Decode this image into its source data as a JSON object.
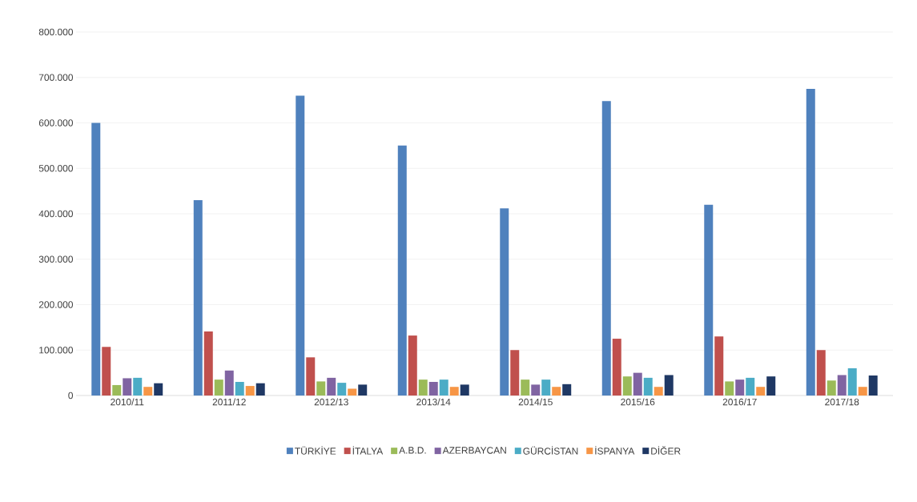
{
  "chart_data": {
    "type": "bar",
    "categories": [
      "2010/11",
      "2011/12",
      "2012/13",
      "2013/14",
      "2014/15",
      "2015/16",
      "2016/17",
      "2017/18"
    ],
    "series": [
      {
        "name": "TÜRKİYE",
        "color": "#4f81bd",
        "values": [
          600000,
          430000,
          660000,
          550000,
          412000,
          648000,
          420000,
          675000
        ]
      },
      {
        "name": "İTALYA",
        "color": "#c0504d",
        "values": [
          107000,
          141000,
          84000,
          132000,
          100000,
          125000,
          130000,
          100000
        ]
      },
      {
        "name": "A.B.D.",
        "color": "#9bbb59",
        "values": [
          23000,
          35000,
          31000,
          35000,
          35000,
          42000,
          31000,
          33000
        ]
      },
      {
        "name": "AZERBAYCAN",
        "color": "#8064a2",
        "values": [
          38000,
          55000,
          39000,
          30000,
          24000,
          50000,
          35000,
          45000
        ]
      },
      {
        "name": "GÜRCİSTAN",
        "color": "#4bacc6",
        "values": [
          39000,
          30000,
          28000,
          35000,
          35000,
          39000,
          39000,
          60000
        ]
      },
      {
        "name": "İSPANYA",
        "color": "#f79646",
        "values": [
          19000,
          21000,
          15000,
          19000,
          19000,
          19000,
          19000,
          19000
        ]
      },
      {
        "name": "DİĞER",
        "color": "#1f3864",
        "values": [
          27000,
          27000,
          24000,
          24000,
          25000,
          45000,
          42000,
          44000
        ]
      }
    ],
    "ylim": [
      0,
      800000
    ],
    "yticks": [
      {
        "value": 0,
        "label": "0"
      },
      {
        "value": 100000,
        "label": "100.000"
      },
      {
        "value": 200000,
        "label": "200.000"
      },
      {
        "value": 300000,
        "label": "300.000"
      },
      {
        "value": 400000,
        "label": "400.000"
      },
      {
        "value": 500000,
        "label": "500.000"
      },
      {
        "value": 600000,
        "label": "600.000"
      },
      {
        "value": 700000,
        "label": "700.000"
      },
      {
        "value": 800000,
        "label": "800.000"
      }
    ],
    "grid": "y",
    "legend": "bottom"
  }
}
